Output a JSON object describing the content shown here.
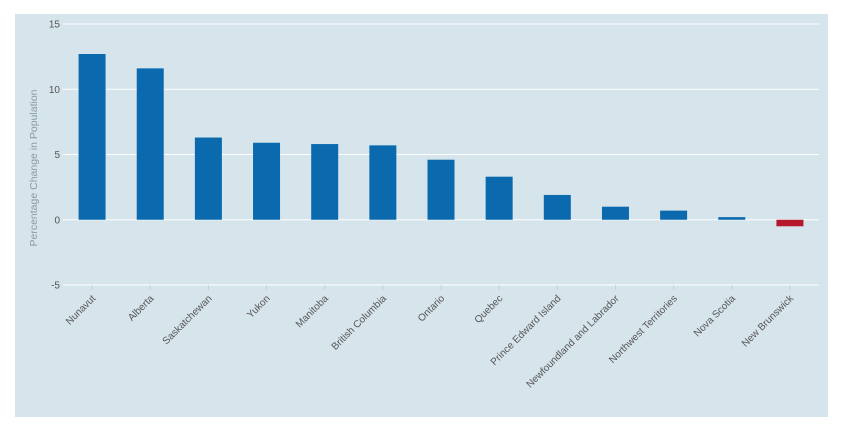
{
  "colors": {
    "panel_bg": "#d6e4ec",
    "gridline": "#ffffff",
    "positive_bar": "#0a6aad",
    "negative_bar": "#b5172c",
    "label_text": "#555555",
    "axis_title_text": "#8a9aa6"
  },
  "chart_data": {
    "type": "bar",
    "title": "",
    "xlabel": "",
    "ylabel": "Percentage Change in Population",
    "ylim": [
      -5,
      15
    ],
    "yticks": [
      -5,
      0,
      5,
      10,
      15
    ],
    "grid": true,
    "legend": "none",
    "categories": [
      "Nunavut",
      "Alberta",
      "Saskatchewan",
      "Yukon",
      "Manitoba",
      "British Columbia",
      "Ontario",
      "Quebec",
      "Prince Edward Island",
      "Newfoundland and Labrador",
      "Northwest Territories",
      "Nova Scotia",
      "New Brunswick"
    ],
    "values": [
      12.7,
      11.6,
      6.3,
      5.9,
      5.8,
      5.7,
      4.6,
      3.3,
      1.9,
      1.0,
      0.7,
      0.2,
      -0.5
    ]
  }
}
